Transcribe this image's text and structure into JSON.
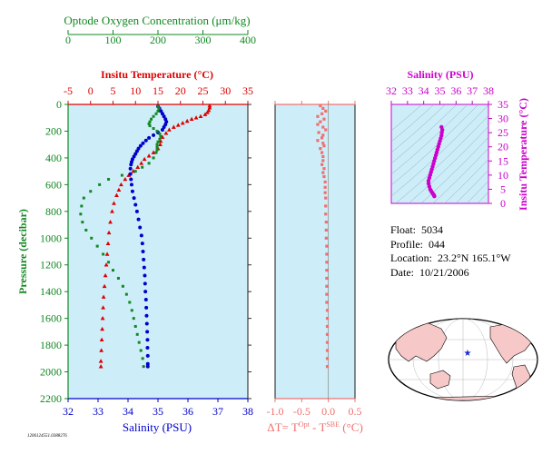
{
  "info": {
    "float_label": "Float:",
    "float_value": "5034",
    "profile_label": "Profile:",
    "profile_value": "044",
    "location_label": "Location:",
    "location_value": "23.2°N 165.1°W",
    "date_label": "Date:",
    "date_value": "10/21/2006"
  },
  "stamp": "1206124551.0388276",
  "colors": {
    "panel_bg": "#cdeef8",
    "temperature": "#dd0000",
    "salinity": "#0000cc",
    "oxygen": "#118822",
    "delta": "#f07070",
    "ts": "#cc00cc",
    "map_marker": "#1a2acc"
  },
  "chart_data": [
    {
      "type": "scatter",
      "name": "profile-panel",
      "ylabel": "Pressure (decibar)",
      "ylim": [
        2200,
        0
      ],
      "yticks": [
        "0",
        "200",
        "400",
        "600",
        "800",
        "1000",
        "1200",
        "1400",
        "1600",
        "1800",
        "2000",
        "2200"
      ],
      "axes": {
        "oxygen": {
          "label": "Optode Oxygen Concentration (μm/kg)",
          "range": [
            0,
            400
          ],
          "ticks": [
            "0",
            "100",
            "200",
            "300",
            "400"
          ]
        },
        "temperature": {
          "label": "Insitu Temperature (°C)",
          "range": [
            -5,
            35
          ],
          "ticks": [
            "-5",
            "0",
            "5",
            "10",
            "15",
            "20",
            "25",
            "30",
            "35"
          ]
        },
        "salinity": {
          "label": "Salinity (PSU)",
          "range": [
            32,
            38
          ],
          "ticks": [
            "32",
            "33",
            "34",
            "35",
            "36",
            "37",
            "38"
          ]
        }
      },
      "series": [
        {
          "name": "temperature",
          "axis": "temperature",
          "points": [
            [
              26.5,
              10
            ],
            [
              26.5,
              25
            ],
            [
              26.3,
              45
            ],
            [
              26,
              60
            ],
            [
              25.5,
              75
            ],
            [
              24.5,
              90
            ],
            [
              23.5,
              100
            ],
            [
              22.5,
              110
            ],
            [
              21.5,
              125
            ],
            [
              20.5,
              140
            ],
            [
              19.5,
              155
            ],
            [
              18.5,
              170
            ],
            [
              17.5,
              190
            ],
            [
              16.8,
              215
            ],
            [
              16,
              245
            ],
            [
              15.6,
              275
            ],
            [
              15.5,
              300
            ],
            [
              15,
              330
            ],
            [
              14,
              360
            ],
            [
              13,
              385
            ],
            [
              12,
              410
            ],
            [
              11.3,
              440
            ],
            [
              10.5,
              470
            ],
            [
              9.5,
              500
            ],
            [
              8.5,
              530
            ],
            [
              7.7,
              560
            ],
            [
              6.8,
              600
            ],
            [
              6.3,
              640
            ],
            [
              5.8,
              680
            ],
            [
              5.2,
              740
            ],
            [
              4.8,
              800
            ],
            [
              4.4,
              880
            ],
            [
              4.1,
              960
            ],
            [
              3.9,
              1040
            ],
            [
              3.7,
              1120
            ],
            [
              3.5,
              1200
            ],
            [
              3.3,
              1280
            ],
            [
              3.1,
              1360
            ],
            [
              2.9,
              1440
            ],
            [
              2.8,
              1520
            ],
            [
              2.7,
              1600
            ],
            [
              2.6,
              1680
            ],
            [
              2.5,
              1760
            ],
            [
              2.4,
              1840
            ],
            [
              2.3,
              1920
            ],
            [
              2.3,
              1960
            ]
          ]
        },
        {
          "name": "salinity",
          "axis": "salinity",
          "points": [
            [
              35.0,
              15
            ],
            [
              35.05,
              30
            ],
            [
              35.1,
              50
            ],
            [
              35.15,
              70
            ],
            [
              35.2,
              90
            ],
            [
              35.25,
              110
            ],
            [
              35.28,
              130
            ],
            [
              35.25,
              150
            ],
            [
              35.2,
              170
            ],
            [
              35.15,
              190
            ],
            [
              35.0,
              210
            ],
            [
              34.85,
              230
            ],
            [
              34.7,
              250
            ],
            [
              34.6,
              270
            ],
            [
              34.5,
              290
            ],
            [
              34.42,
              310
            ],
            [
              34.35,
              330
            ],
            [
              34.3,
              350
            ],
            [
              34.25,
              370
            ],
            [
              34.2,
              390
            ],
            [
              34.15,
              410
            ],
            [
              34.12,
              430
            ],
            [
              34.1,
              450
            ],
            [
              34.08,
              480
            ],
            [
              34.08,
              520
            ],
            [
              34.1,
              560
            ],
            [
              34.12,
              600
            ],
            [
              34.15,
              650
            ],
            [
              34.2,
              700
            ],
            [
              34.25,
              750
            ],
            [
              34.3,
              800
            ],
            [
              34.35,
              860
            ],
            [
              34.4,
              920
            ],
            [
              34.45,
              980
            ],
            [
              34.48,
              1040
            ],
            [
              34.5,
              1100
            ],
            [
              34.52,
              1160
            ],
            [
              34.54,
              1220
            ],
            [
              34.56,
              1280
            ],
            [
              34.57,
              1340
            ],
            [
              34.58,
              1400
            ],
            [
              34.6,
              1460
            ],
            [
              34.61,
              1520
            ],
            [
              34.62,
              1580
            ],
            [
              34.63,
              1640
            ],
            [
              34.64,
              1700
            ],
            [
              34.65,
              1760
            ],
            [
              34.65,
              1820
            ],
            [
              34.66,
              1880
            ],
            [
              34.66,
              1940
            ],
            [
              34.66,
              1960
            ]
          ]
        },
        {
          "name": "oxygen",
          "axis": "oxygen",
          "points": [
            [
              200,
              15
            ],
            [
              202,
              30
            ],
            [
              200,
              50
            ],
            [
              196,
              70
            ],
            [
              190,
              90
            ],
            [
              185,
              110
            ],
            [
              182,
              130
            ],
            [
              180,
              145
            ],
            [
              182,
              160
            ],
            [
              190,
              180
            ],
            [
              198,
              200
            ],
            [
              204,
              220
            ],
            [
              206,
              240
            ],
            [
              204,
              260
            ],
            [
              200,
              280
            ],
            [
              198,
              300
            ],
            [
              198,
              320
            ],
            [
              198,
              340
            ],
            [
              196,
              360
            ],
            [
              190,
              400
            ],
            [
              180,
              440
            ],
            [
              165,
              470
            ],
            [
              150,
              500
            ],
            [
              120,
              530
            ],
            [
              90,
              560
            ],
            [
              70,
              600
            ],
            [
              50,
              650
            ],
            [
              35,
              700
            ],
            [
              30,
              760
            ],
            [
              28,
              820
            ],
            [
              32,
              880
            ],
            [
              40,
              940
            ],
            [
              52,
              1000
            ],
            [
              65,
              1060
            ],
            [
              78,
              1120
            ],
            [
              90,
              1180
            ],
            [
              100,
              1240
            ],
            [
              112,
              1300
            ],
            [
              122,
              1360
            ],
            [
              130,
              1420
            ],
            [
              137,
              1480
            ],
            [
              142,
              1540
            ],
            [
              146,
              1600
            ],
            [
              150,
              1660
            ],
            [
              154,
              1720
            ],
            [
              158,
              1780
            ],
            [
              162,
              1840
            ],
            [
              166,
              1900
            ],
            [
              168,
              1960
            ]
          ]
        }
      ],
      "xlabel": "Salinity (PSU)"
    },
    {
      "type": "scatter",
      "name": "delta-panel",
      "xlabel": "ΔT= T^Opt - T^SBE (°C)",
      "xlim": [
        -1.0,
        0.5
      ],
      "xticks": [
        "-1.0",
        "-0.5",
        "0.0",
        "0.5"
      ],
      "ylim": [
        2200,
        0
      ],
      "values": [
        [
          -0.15,
          10
        ],
        [
          -0.1,
          30
        ],
        [
          -0.05,
          50
        ],
        [
          -0.12,
          70
        ],
        [
          -0.2,
          90
        ],
        [
          -0.08,
          110
        ],
        [
          -0.15,
          130
        ],
        [
          -0.2,
          150
        ],
        [
          -0.1,
          170
        ],
        [
          -0.05,
          190
        ],
        [
          -0.18,
          210
        ],
        [
          -0.1,
          230
        ],
        [
          -0.12,
          250
        ],
        [
          -0.2,
          270
        ],
        [
          -0.1,
          290
        ],
        [
          -0.08,
          310
        ],
        [
          -0.15,
          330
        ],
        [
          -0.12,
          360
        ],
        [
          -0.1,
          390
        ],
        [
          -0.1,
          420
        ],
        [
          -0.12,
          450
        ],
        [
          -0.08,
          480
        ],
        [
          -0.1,
          510
        ],
        [
          -0.08,
          540
        ],
        [
          -0.06,
          580
        ],
        [
          -0.06,
          620
        ],
        [
          -0.06,
          660
        ],
        [
          -0.05,
          700
        ],
        [
          -0.05,
          760
        ],
        [
          -0.05,
          820
        ],
        [
          -0.04,
          880
        ],
        [
          -0.04,
          940
        ],
        [
          -0.04,
          1000
        ],
        [
          -0.03,
          1060
        ],
        [
          -0.03,
          1120
        ],
        [
          -0.03,
          1180
        ],
        [
          -0.03,
          1240
        ],
        [
          -0.03,
          1300
        ],
        [
          -0.03,
          1360
        ],
        [
          -0.03,
          1420
        ],
        [
          -0.03,
          1480
        ],
        [
          -0.02,
          1540
        ],
        [
          -0.02,
          1600
        ],
        [
          -0.02,
          1660
        ],
        [
          -0.02,
          1720
        ],
        [
          -0.02,
          1780
        ],
        [
          -0.02,
          1840
        ],
        [
          -0.02,
          1900
        ],
        [
          -0.02,
          1960
        ]
      ]
    },
    {
      "type": "scatter",
      "name": "ts-panel",
      "xlabel": "Salinity (PSU)",
      "ylabel": "Insitu Temperature (°C)",
      "xlim": [
        32,
        38
      ],
      "ylim": [
        0,
        35
      ],
      "xticks": [
        "32",
        "33",
        "34",
        "35",
        "36",
        "37",
        "38"
      ],
      "yticks": [
        "0",
        "5",
        "10",
        "15",
        "20",
        "25",
        "30",
        "35"
      ],
      "values": [
        [
          35.1,
          27
        ],
        [
          35.15,
          26
        ],
        [
          35.12,
          25
        ],
        [
          35.1,
          24
        ],
        [
          35.05,
          23
        ],
        [
          35.0,
          22
        ],
        [
          34.95,
          21
        ],
        [
          34.9,
          20
        ],
        [
          34.85,
          19
        ],
        [
          34.8,
          18
        ],
        [
          34.75,
          17
        ],
        [
          34.7,
          16
        ],
        [
          34.65,
          15
        ],
        [
          34.6,
          14
        ],
        [
          34.55,
          13
        ],
        [
          34.5,
          12
        ],
        [
          34.45,
          11
        ],
        [
          34.4,
          10
        ],
        [
          34.35,
          9
        ],
        [
          34.3,
          8
        ],
        [
          34.3,
          7
        ],
        [
          34.35,
          6
        ],
        [
          34.4,
          5
        ],
        [
          34.45,
          4.5
        ],
        [
          34.5,
          4
        ],
        [
          34.55,
          3.6
        ],
        [
          34.6,
          3.2
        ],
        [
          34.62,
          3
        ],
        [
          34.64,
          2.8
        ],
        [
          34.66,
          2.5
        ]
      ]
    }
  ]
}
